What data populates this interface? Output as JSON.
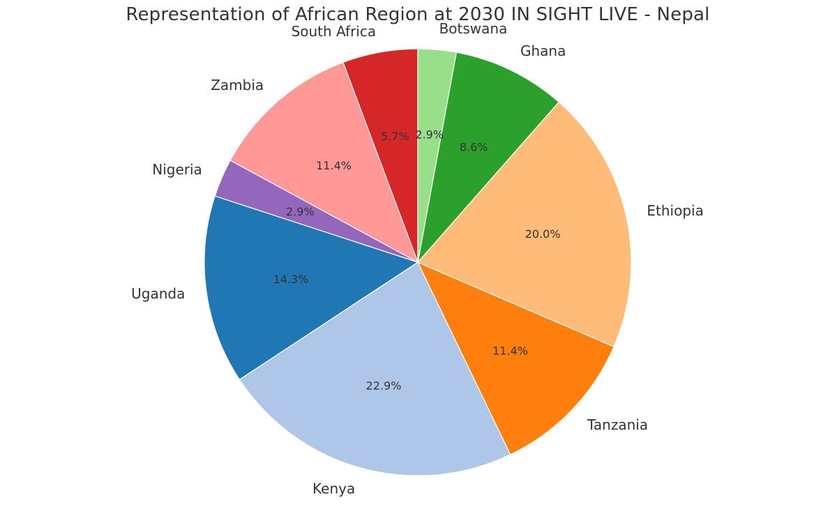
{
  "chart_data": {
    "type": "pie",
    "title": "Representation of African Region at 2030 IN SIGHT LIVE - Nepal",
    "start_angle_deg": 90,
    "direction": "counterclockwise",
    "legend": "none",
    "slices": [
      {
        "label": "South Africa",
        "value": 5.7,
        "pct_label": "5.7%",
        "color": "#d62728"
      },
      {
        "label": "Zambia",
        "value": 11.4,
        "pct_label": "11.4%",
        "color": "#ff9896"
      },
      {
        "label": "Nigeria",
        "value": 2.9,
        "pct_label": "2.9%",
        "color": "#9467bd"
      },
      {
        "label": "Uganda",
        "value": 14.3,
        "pct_label": "14.3%",
        "color": "#1f77b4"
      },
      {
        "label": "Kenya",
        "value": 22.9,
        "pct_label": "22.9%",
        "color": "#aec7e8"
      },
      {
        "label": "Tanzania",
        "value": 11.4,
        "pct_label": "11.4%",
        "color": "#ff7f0e"
      },
      {
        "label": "Ethiopia",
        "value": 20.0,
        "pct_label": "20.0%",
        "color": "#ffbb78"
      },
      {
        "label": "Ghana",
        "value": 8.6,
        "pct_label": "8.6%",
        "color": "#2ca02c"
      },
      {
        "label": "Botswana",
        "value": 2.9,
        "pct_label": "2.9%",
        "color": "#98df8a"
      }
    ]
  }
}
